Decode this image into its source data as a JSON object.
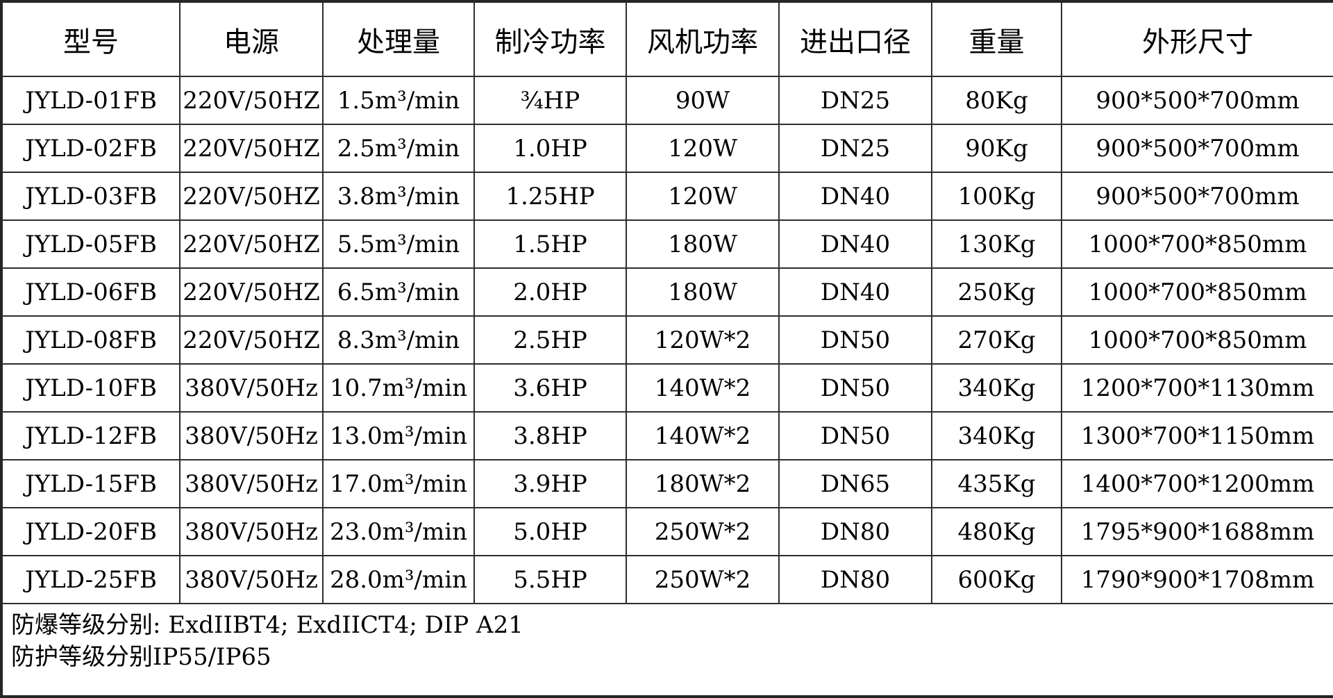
{
  "colors": {
    "background": "#ffffff",
    "text": "#000000",
    "border": "#2d2d2d"
  },
  "table": {
    "headers": [
      "型号",
      "电源",
      "处理量",
      "制冷功率",
      "风机功率",
      "进出口径",
      "重量",
      "外形尺寸"
    ],
    "rows": [
      [
        "JYLD-01FB",
        "220V/50HZ",
        "1.5m³/min",
        "¾HP",
        "90W",
        "DN25",
        "80Kg",
        "900*500*700mm"
      ],
      [
        "JYLD-02FB",
        "220V/50HZ",
        "2.5m³/min",
        "1.0HP",
        "120W",
        "DN25",
        "90Kg",
        "900*500*700mm"
      ],
      [
        "JYLD-03FB",
        "220V/50HZ",
        "3.8m³/min",
        "1.25HP",
        "120W",
        "DN40",
        "100Kg",
        "900*500*700mm"
      ],
      [
        "JYLD-05FB",
        "220V/50HZ",
        "5.5m³/min",
        "1.5HP",
        "180W",
        "DN40",
        "130Kg",
        "1000*700*850mm"
      ],
      [
        "JYLD-06FB",
        "220V/50HZ",
        "6.5m³/min",
        "2.0HP",
        "180W",
        "DN40",
        "250Kg",
        "1000*700*850mm"
      ],
      [
        "JYLD-08FB",
        "220V/50HZ",
        "8.3m³/min",
        "2.5HP",
        "120W*2",
        "DN50",
        "270Kg",
        "1000*700*850mm"
      ],
      [
        "JYLD-10FB",
        "380V/50Hz",
        "10.7m³/min",
        "3.6HP",
        "140W*2",
        "DN50",
        "340Kg",
        "1200*700*1130mm"
      ],
      [
        "JYLD-12FB",
        "380V/50Hz",
        "13.0m³/min",
        "3.8HP",
        "140W*2",
        "DN50",
        "340Kg",
        "1300*700*1150mm"
      ],
      [
        "JYLD-15FB",
        "380V/50Hz",
        "17.0m³/min",
        "3.9HP",
        "180W*2",
        "DN65",
        "435Kg",
        "1400*700*1200mm"
      ],
      [
        "JYLD-20FB",
        "380V/50Hz",
        "23.0m³/min",
        "5.0HP",
        "250W*2",
        "DN80",
        "480Kg",
        "1795*900*1688mm"
      ],
      [
        "JYLD-25FB",
        "380V/50Hz",
        "28.0m³/min",
        "5.5HP",
        "250W*2",
        "DN80",
        "600Kg",
        "1790*900*1708mm"
      ]
    ],
    "footer_lines": [
      "防爆等级分别: ExdIIBT4; ExdIICT4; DIP A21",
      "防护等级分别IP55/IP65"
    ]
  }
}
